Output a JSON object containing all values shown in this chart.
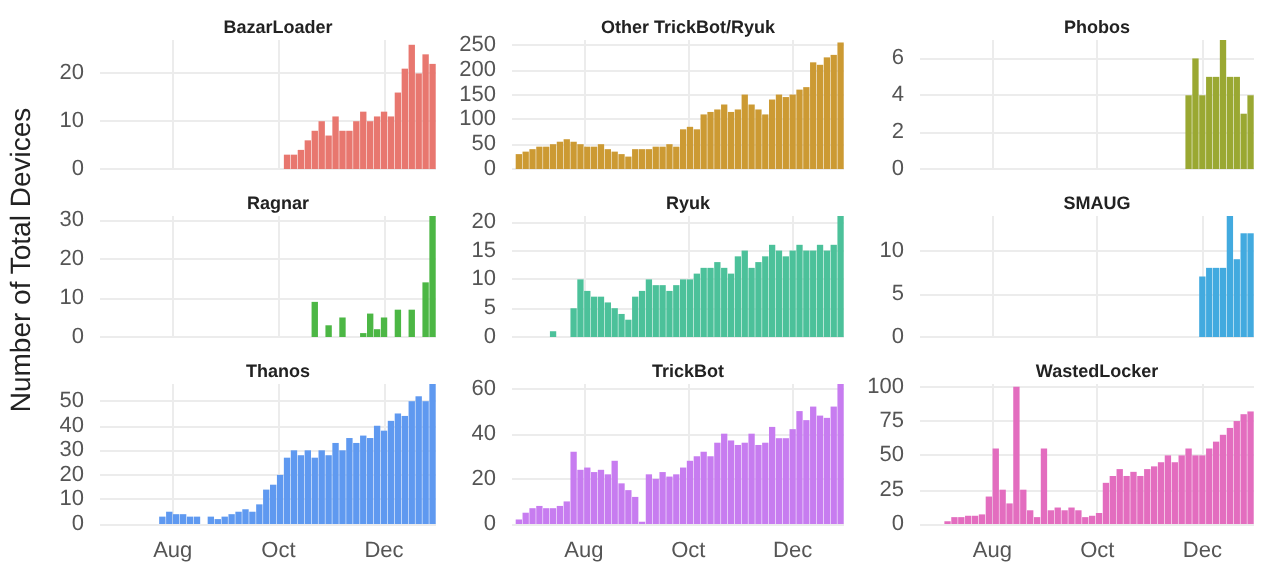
{
  "chart_data": [
    {
      "type": "bar",
      "title": "BazarLoader",
      "x": [
        "--10-06",
        "--10-10",
        "--10-14",
        "--10-18",
        "--10-22",
        "--10-26",
        "--10-30",
        "--11-03",
        "--11-07",
        "--11-11",
        "--11-15",
        "--11-19",
        "--11-23",
        "--11-27",
        "--12-01",
        "--12-05",
        "--12-09",
        "--12-13",
        "--12-17",
        "--12-21",
        "--12-25",
        "--12-29"
      ],
      "values": [
        3,
        3,
        4,
        6,
        8,
        10,
        7,
        11,
        8,
        8,
        10,
        12,
        10,
        11,
        12,
        11,
        16,
        21,
        26,
        20,
        24,
        22
      ],
      "color": "#e8776f",
      "xlim": [
        "--06-20",
        "--12-31"
      ],
      "xticks": [
        {
          "value": "--08-01",
          "label": null
        },
        {
          "value": "--10-01",
          "label": null
        },
        {
          "value": "--12-01",
          "label": null
        }
      ],
      "ylim": [
        0,
        27
      ],
      "yticks": [
        0,
        10,
        20
      ],
      "grid": true,
      "tick_labels": "y"
    },
    {
      "type": "bar",
      "title": "Other TrickBot/Ryuk",
      "x": [
        "--06-24",
        "--06-28",
        "--07-02",
        "--07-06",
        "--07-10",
        "--07-14",
        "--07-18",
        "--07-22",
        "--07-26",
        "--07-30",
        "--08-03",
        "--08-07",
        "--08-11",
        "--08-15",
        "--08-19",
        "--08-23",
        "--08-27",
        "--08-31",
        "--09-04",
        "--09-08",
        "--09-12",
        "--09-16",
        "--09-20",
        "--09-24",
        "--09-28",
        "--10-02",
        "--10-06",
        "--10-10",
        "--10-14",
        "--10-18",
        "--10-22",
        "--10-26",
        "--10-30",
        "--11-03",
        "--11-07",
        "--11-11",
        "--11-15",
        "--11-19",
        "--11-23",
        "--11-27",
        "--12-01",
        "--12-05",
        "--12-09",
        "--12-13",
        "--12-17",
        "--12-21",
        "--12-25",
        "--12-29"
      ],
      "values": [
        30,
        35,
        40,
        45,
        45,
        50,
        55,
        60,
        55,
        50,
        45,
        45,
        50,
        40,
        35,
        30,
        25,
        40,
        40,
        40,
        45,
        45,
        50,
        45,
        80,
        85,
        80,
        110,
        115,
        120,
        130,
        115,
        120,
        150,
        130,
        120,
        110,
        140,
        150,
        145,
        150,
        160,
        165,
        215,
        210,
        225,
        230,
        255
      ],
      "color": "#cc9a33",
      "xlim": [
        "--06-20",
        "--12-31"
      ],
      "xticks": [
        {
          "value": "--08-01",
          "label": null
        },
        {
          "value": "--10-01",
          "label": null
        },
        {
          "value": "--12-01",
          "label": null
        }
      ],
      "ylim": [
        0,
        260
      ],
      "yticks": [
        0,
        50,
        100,
        150,
        200,
        250
      ],
      "grid": true,
      "tick_labels": "y"
    },
    {
      "type": "bar",
      "title": "Phobos",
      "x": [
        "--11-23",
        "--11-27",
        "--12-01",
        "--12-05",
        "--12-09",
        "--12-13",
        "--12-17",
        "--12-21",
        "--12-25",
        "--12-29"
      ],
      "values": [
        4,
        6,
        4,
        5,
        5,
        7,
        5,
        5,
        3,
        4
      ],
      "color": "#9aa832",
      "xlim": [
        "--06-20",
        "--12-31"
      ],
      "xticks": [
        {
          "value": "--08-01",
          "label": null
        },
        {
          "value": "--10-01",
          "label": null
        },
        {
          "value": "--12-01",
          "label": null
        }
      ],
      "ylim": [
        0,
        7
      ],
      "yticks": [
        0,
        2,
        4,
        6
      ],
      "grid": true,
      "tick_labels": "y"
    },
    {
      "type": "bar",
      "title": "Ragnar",
      "ylabel": "Number of Total Devices",
      "x": [
        "--10-22",
        "--10-30",
        "--11-07",
        "--11-19",
        "--11-23",
        "--11-27",
        "--12-01",
        "--12-09",
        "--12-17",
        "--12-25",
        "--12-29"
      ],
      "values": [
        9,
        3,
        5,
        1,
        6,
        2,
        5,
        7,
        7,
        14,
        31
      ],
      "color": "#4cb745",
      "xlim": [
        "--06-20",
        "--12-31"
      ],
      "xticks": [
        {
          "value": "--08-01",
          "label": null
        },
        {
          "value": "--10-01",
          "label": null
        },
        {
          "value": "--12-01",
          "label": null
        }
      ],
      "ylim": [
        0,
        31
      ],
      "yticks": [
        0,
        10,
        20,
        30
      ],
      "grid": true,
      "tick_labels": "y"
    },
    {
      "type": "bar",
      "title": "Ryuk",
      "x": [
        "--07-14",
        "--07-26",
        "--07-30",
        "--08-03",
        "--08-07",
        "--08-11",
        "--08-15",
        "--08-19",
        "--08-23",
        "--08-27",
        "--08-31",
        "--09-04",
        "--09-08",
        "--09-12",
        "--09-16",
        "--09-20",
        "--09-24",
        "--09-28",
        "--10-02",
        "--10-06",
        "--10-10",
        "--10-14",
        "--10-18",
        "--10-22",
        "--10-26",
        "--10-30",
        "--11-03",
        "--11-07",
        "--11-11",
        "--11-15",
        "--11-19",
        "--11-23",
        "--11-27",
        "--12-01",
        "--12-05",
        "--12-09",
        "--12-13",
        "--12-17",
        "--12-21",
        "--12-25",
        "--12-29"
      ],
      "values": [
        1,
        5,
        10,
        8,
        7,
        7,
        6,
        5,
        4,
        3,
        7,
        8,
        10,
        9,
        9,
        8,
        9,
        10,
        10,
        11,
        12,
        12,
        13,
        12,
        11,
        14,
        15,
        12,
        13,
        14,
        16,
        15,
        14,
        15,
        16,
        15,
        15,
        16,
        15,
        16,
        21
      ],
      "color": "#4cc19a",
      "xlim": [
        "--06-20",
        "--12-31"
      ],
      "xticks": [
        {
          "value": "--08-01",
          "label": null
        },
        {
          "value": "--10-01",
          "label": null
        },
        {
          "value": "--12-01",
          "label": null
        }
      ],
      "ylim": [
        0,
        21
      ],
      "yticks": [
        0,
        5,
        10,
        15,
        20
      ],
      "grid": true,
      "tick_labels": "y"
    },
    {
      "type": "bar",
      "title": "SMAUG",
      "x": [
        "--12-01",
        "--12-05",
        "--12-09",
        "--12-13",
        "--12-17",
        "--12-21",
        "--12-25",
        "--12-29"
      ],
      "values": [
        7,
        8,
        8,
        8,
        14,
        9,
        12,
        12
      ],
      "color": "#42aadf",
      "xlim": [
        "--06-20",
        "--12-31"
      ],
      "xticks": [
        {
          "value": "--08-01",
          "label": null
        },
        {
          "value": "--10-01",
          "label": null
        },
        {
          "value": "--12-01",
          "label": null
        }
      ],
      "ylim": [
        0,
        14
      ],
      "yticks": [
        0,
        5,
        10
      ],
      "grid": true,
      "tick_labels": "y"
    },
    {
      "type": "bar",
      "title": "Thanos",
      "x": [
        "--07-26",
        "--07-30",
        "--08-03",
        "--08-07",
        "--08-11",
        "--08-15",
        "--08-23",
        "--08-27",
        "--08-31",
        "--09-04",
        "--09-08",
        "--09-12",
        "--09-16",
        "--09-20",
        "--09-24",
        "--09-28",
        "--10-02",
        "--10-06",
        "--10-10",
        "--10-14",
        "--10-18",
        "--10-22",
        "--10-26",
        "--10-30",
        "--11-03",
        "--11-07",
        "--11-11",
        "--11-15",
        "--11-19",
        "--11-23",
        "--11-27",
        "--12-01",
        "--12-05",
        "--12-09",
        "--12-13",
        "--12-17",
        "--12-21",
        "--12-25",
        "--12-29"
      ],
      "values": [
        3,
        5,
        4,
        4,
        3,
        3,
        3,
        2,
        3,
        4,
        5,
        6,
        5,
        8,
        14,
        16,
        20,
        27,
        30,
        28,
        30,
        27,
        30,
        28,
        33,
        30,
        35,
        33,
        36,
        35,
        40,
        38,
        42,
        45,
        44,
        50,
        52,
        50,
        57
      ],
      "color": "#5f99f0",
      "xlim": [
        "--06-20",
        "--12-31"
      ],
      "xticks": [
        {
          "value": "--08-01",
          "label": "Aug"
        },
        {
          "value": "--10-01",
          "label": "Oct"
        },
        {
          "value": "--12-01",
          "label": "Dec"
        }
      ],
      "ylim": [
        0,
        57
      ],
      "yticks": [
        0,
        10,
        20,
        30,
        40,
        50
      ],
      "grid": true
    },
    {
      "type": "bar",
      "title": "TrickBot",
      "x": [
        "--06-24",
        "--06-28",
        "--07-02",
        "--07-06",
        "--07-10",
        "--07-14",
        "--07-18",
        "--07-22",
        "--07-26",
        "--07-30",
        "--08-03",
        "--08-07",
        "--08-11",
        "--08-15",
        "--08-19",
        "--08-23",
        "--08-27",
        "--08-31",
        "--09-04",
        "--09-08",
        "--09-12",
        "--09-16",
        "--09-20",
        "--09-24",
        "--09-28",
        "--10-02",
        "--10-06",
        "--10-10",
        "--10-14",
        "--10-18",
        "--10-22",
        "--10-26",
        "--10-30",
        "--11-03",
        "--11-07",
        "--11-11",
        "--11-15",
        "--11-19",
        "--11-23",
        "--11-27",
        "--12-01",
        "--12-05",
        "--12-09",
        "--12-13",
        "--12-17",
        "--12-21",
        "--12-25",
        "--12-29"
      ],
      "values": [
        2,
        5,
        7,
        8,
        7,
        7,
        8,
        10,
        32,
        24,
        25,
        23,
        24,
        22,
        28,
        18,
        15,
        12,
        1,
        22,
        20,
        23,
        21,
        22,
        25,
        28,
        30,
        32,
        30,
        36,
        40,
        37,
        35,
        36,
        40,
        35,
        36,
        43,
        38,
        38,
        42,
        50,
        46,
        52,
        48,
        47,
        52,
        62
      ],
      "color": "#c77cf0",
      "xlim": [
        "--06-20",
        "--12-31"
      ],
      "xticks": [
        {
          "value": "--08-01",
          "label": "Aug"
        },
        {
          "value": "--10-01",
          "label": "Oct"
        },
        {
          "value": "--12-01",
          "label": "Dec"
        }
      ],
      "ylim": [
        0,
        62
      ],
      "yticks": [
        0,
        20,
        40,
        60
      ],
      "grid": true
    },
    {
      "type": "bar",
      "title": "WastedLocker",
      "x": [
        "--07-06",
        "--07-10",
        "--07-14",
        "--07-18",
        "--07-22",
        "--07-26",
        "--07-30",
        "--08-03",
        "--08-07",
        "--08-11",
        "--08-15",
        "--08-19",
        "--08-23",
        "--08-27",
        "--08-31",
        "--09-04",
        "--09-08",
        "--09-12",
        "--09-16",
        "--09-20",
        "--09-24",
        "--09-28",
        "--10-02",
        "--10-06",
        "--10-10",
        "--10-14",
        "--10-18",
        "--10-22",
        "--10-26",
        "--10-30",
        "--11-03",
        "--11-07",
        "--11-11",
        "--11-15",
        "--11-19",
        "--11-23",
        "--11-27",
        "--12-01",
        "--12-05",
        "--12-09",
        "--12-13",
        "--12-17",
        "--12-21",
        "--12-25",
        "--12-29"
      ],
      "values": [
        2,
        5,
        5,
        6,
        6,
        7,
        20,
        55,
        25,
        15,
        100,
        25,
        10,
        5,
        55,
        10,
        12,
        10,
        12,
        10,
        5,
        6,
        8,
        30,
        35,
        40,
        35,
        38,
        35,
        40,
        42,
        45,
        50,
        45,
        50,
        55,
        50,
        50,
        55,
        60,
        65,
        70,
        75,
        80,
        82
      ],
      "color": "#e36dbf",
      "xlim": [
        "--06-20",
        "--12-31"
      ],
      "xticks": [
        {
          "value": "--08-01",
          "label": "Aug"
        },
        {
          "value": "--10-01",
          "label": "Oct"
        },
        {
          "value": "--12-01",
          "label": "Dec"
        }
      ],
      "ylim": [
        0,
        102
      ],
      "yticks": [
        0,
        25,
        50,
        75,
        100
      ],
      "grid": true
    }
  ]
}
